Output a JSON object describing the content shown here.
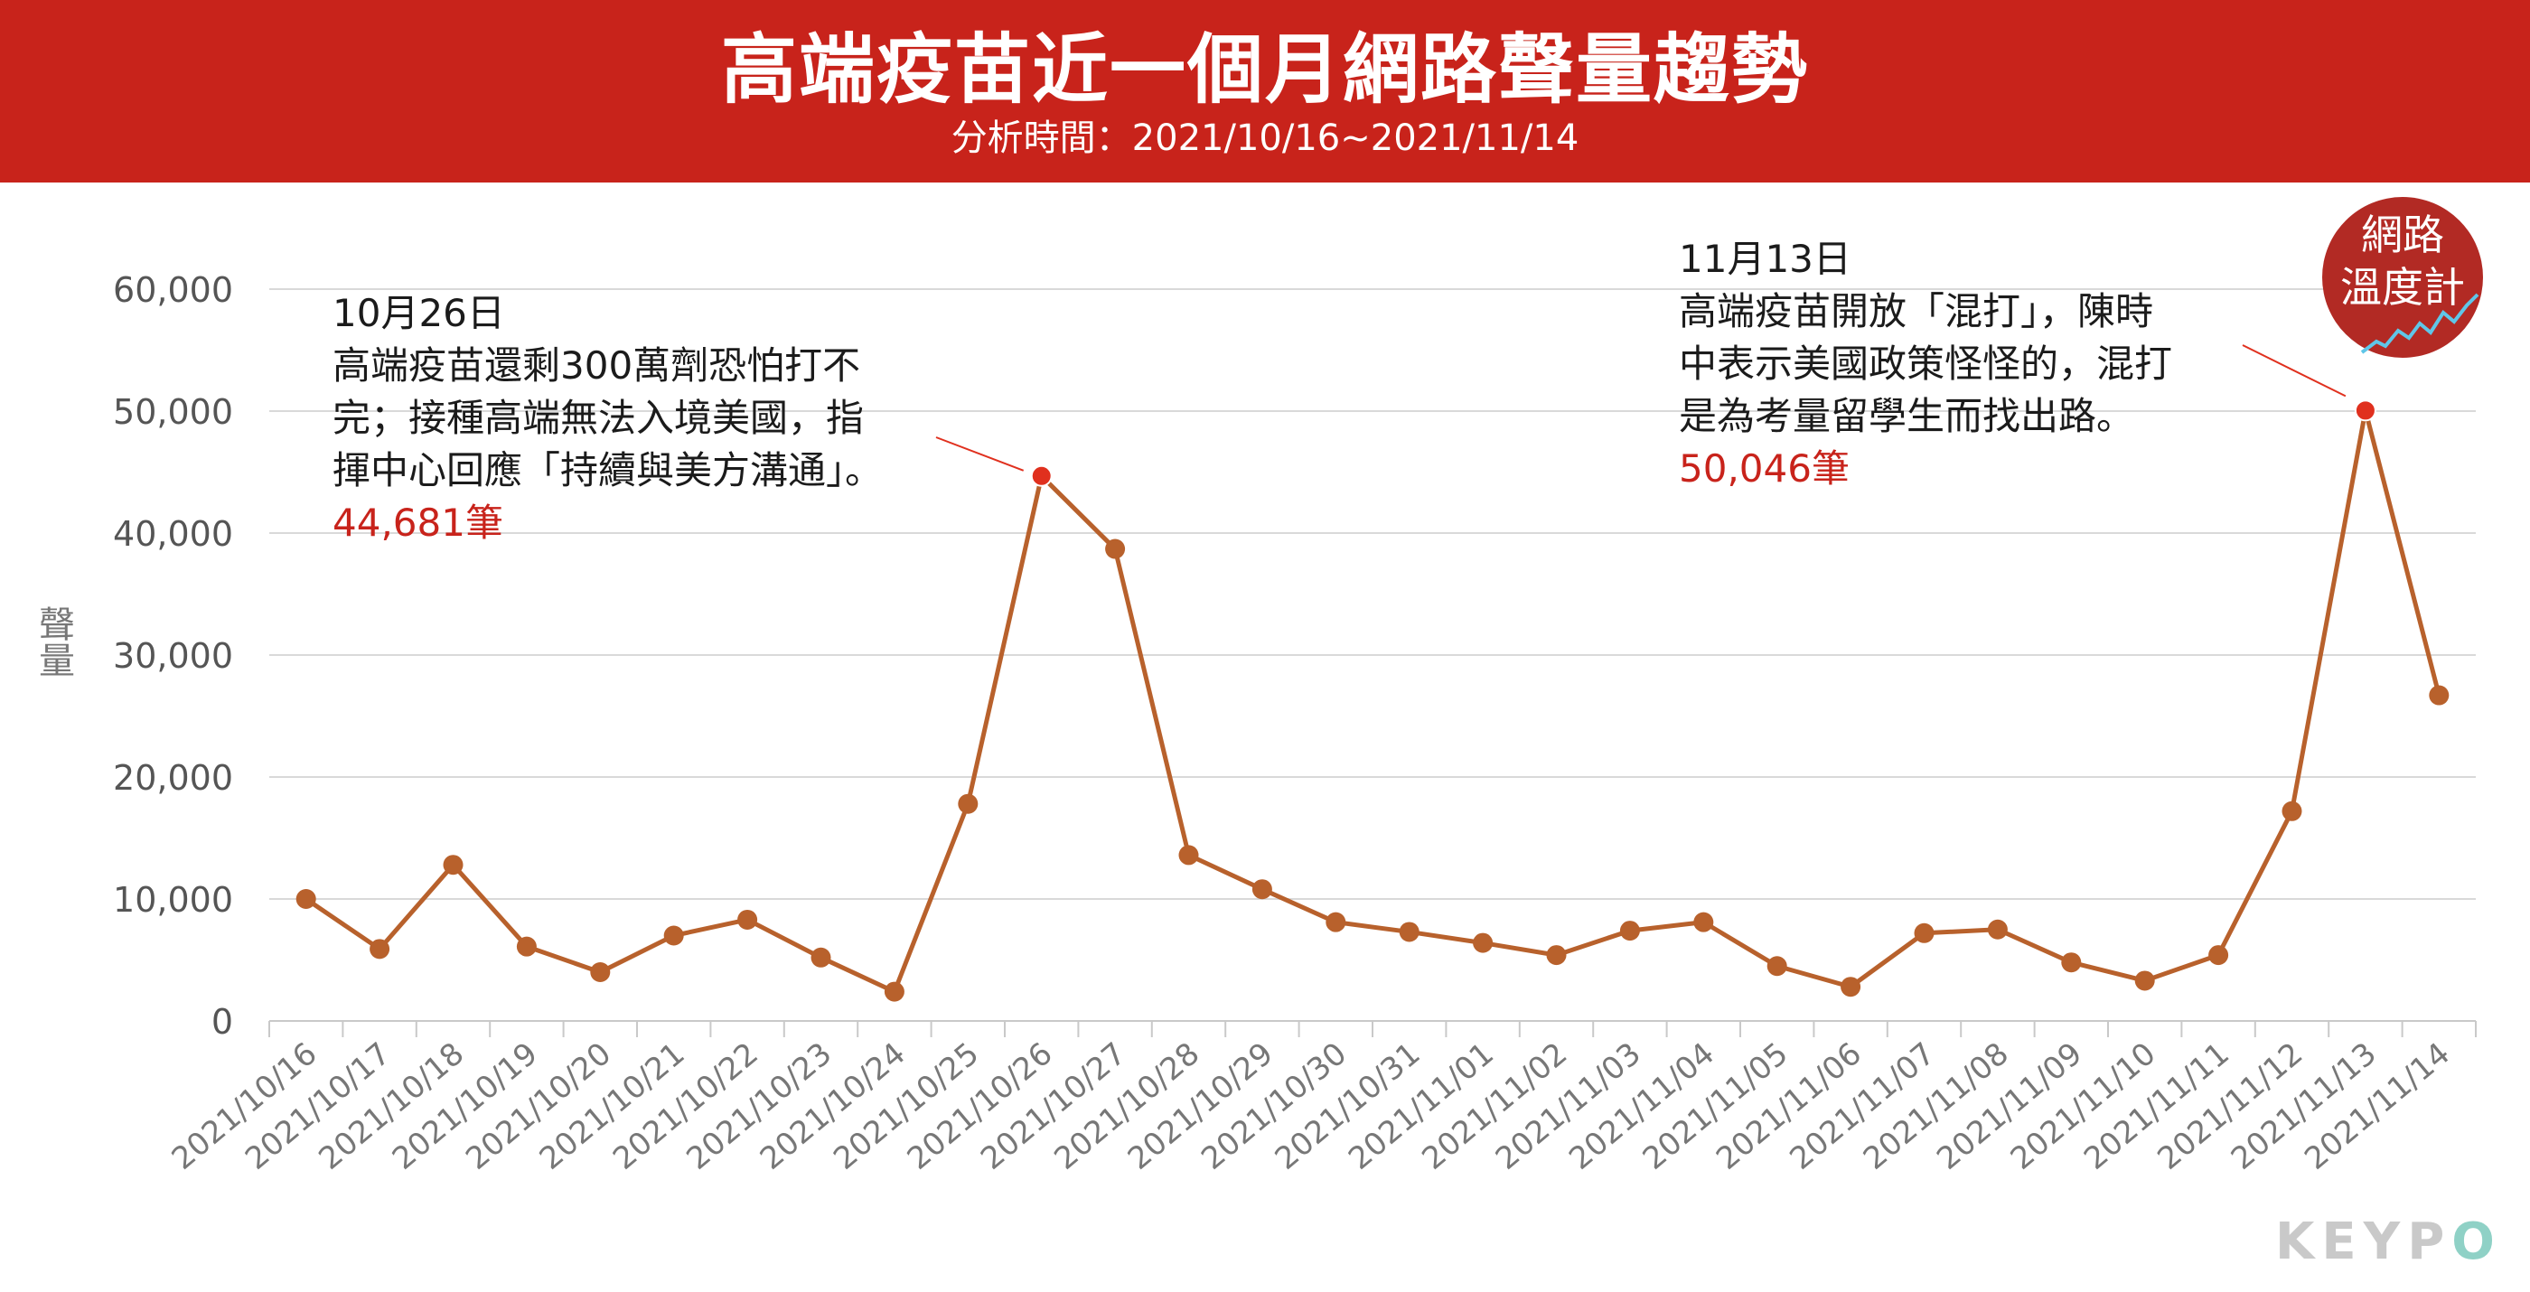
{
  "header": {
    "title": "高端疫苗近一個月網路聲量趨勢",
    "subtitle": "分析時間：2021/10/16~2021/11/14"
  },
  "colors": {
    "brand": "#c8231b",
    "line": "#b8612c",
    "highlight": "#e0301e",
    "grid": "#d9d9d9"
  },
  "chart_data": {
    "type": "line",
    "ylabel": "聲量",
    "ylim": [
      0,
      60000
    ],
    "yticks": [
      0,
      10000,
      20000,
      30000,
      40000,
      50000,
      60000
    ],
    "ytick_labels": [
      "0",
      "10,000",
      "20,000",
      "30,000",
      "40,000",
      "50,000",
      "60,000"
    ],
    "grid": "horizontal",
    "categories": [
      "2021/10/16",
      "2021/10/17",
      "2021/10/18",
      "2021/10/19",
      "2021/10/20",
      "2021/10/21",
      "2021/10/22",
      "2021/10/23",
      "2021/10/24",
      "2021/10/25",
      "2021/10/26",
      "2021/10/27",
      "2021/10/28",
      "2021/10/29",
      "2021/10/30",
      "2021/10/31",
      "2021/11/01",
      "2021/11/02",
      "2021/11/03",
      "2021/11/04",
      "2021/11/05",
      "2021/11/06",
      "2021/11/07",
      "2021/11/08",
      "2021/11/09",
      "2021/11/10",
      "2021/11/11",
      "2021/11/12",
      "2021/11/13",
      "2021/11/14"
    ],
    "values": [
      10000,
      5900,
      12800,
      6100,
      4000,
      7000,
      8300,
      5200,
      2400,
      17800,
      44681,
      38700,
      13600,
      10800,
      8100,
      7300,
      6400,
      5400,
      7400,
      8100,
      4500,
      2800,
      7200,
      7500,
      4800,
      3300,
      5400,
      17200,
      50046,
      26700
    ],
    "highlighted_indices": [
      10,
      28
    ],
    "annotations": [
      {
        "date": "10月26日",
        "lines": [
          "高端疫苗還剩300萬劑恐怕打不",
          "完；接種高端無法入境美國，指",
          "揮中心回應「持續與美方溝通」。"
        ],
        "value_label": "44,681筆"
      },
      {
        "date": "11月13日",
        "lines": [
          "高端疫苗開放「混打」，陳時",
          "中表示美國政策怪怪的，混打",
          "是為考量留學生而找出路。"
        ],
        "value_label": "50,046筆"
      }
    ]
  },
  "badge": {
    "line1": "網路",
    "line2": "溫度計"
  },
  "logo": {
    "text_a": "KEYP",
    "text_b": "O"
  }
}
